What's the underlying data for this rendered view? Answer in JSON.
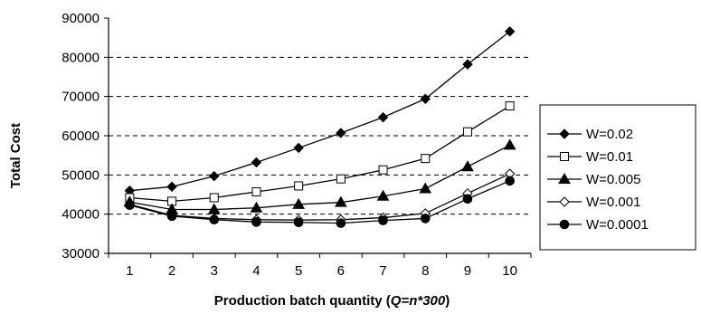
{
  "chart_data": {
    "type": "line",
    "xlabel": {
      "prefix": "Production batch quantity (",
      "italic": "Q=n*300",
      "suffix": ")"
    },
    "ylabel": "Total Cost",
    "x": [
      1,
      2,
      3,
      4,
      5,
      6,
      7,
      8,
      9,
      10
    ],
    "ylim": [
      30000,
      90000
    ],
    "yticks": [
      30000,
      40000,
      50000,
      60000,
      70000,
      80000,
      90000
    ],
    "grid": "dashed horizontal at 40000, 50000, 60000, 70000, 80000",
    "legend_position": "right",
    "series": [
      {
        "name": "W=0.02",
        "marker": "diamond-filled",
        "values": [
          46000,
          47000,
          49700,
          53200,
          56900,
          60700,
          64700,
          69400,
          78200,
          86600
        ]
      },
      {
        "name": "W=0.01",
        "marker": "square-open",
        "values": [
          44200,
          43300,
          44200,
          45700,
          47200,
          49000,
          51300,
          54200,
          61000,
          67600
        ]
      },
      {
        "name": "W=0.005",
        "marker": "triangle-filled",
        "values": [
          43100,
          41200,
          41200,
          41600,
          42500,
          43000,
          44600,
          46500,
          52100,
          57600
        ]
      },
      {
        "name": "W=0.001",
        "marker": "diamond-open",
        "values": [
          42500,
          39700,
          38900,
          38600,
          38500,
          38600,
          39100,
          40200,
          45300,
          50300
        ]
      },
      {
        "name": "W=0.0001",
        "marker": "circle-filled",
        "values": [
          42300,
          39500,
          38600,
          38000,
          37900,
          37700,
          38400,
          38900,
          43900,
          48500
        ]
      }
    ]
  }
}
